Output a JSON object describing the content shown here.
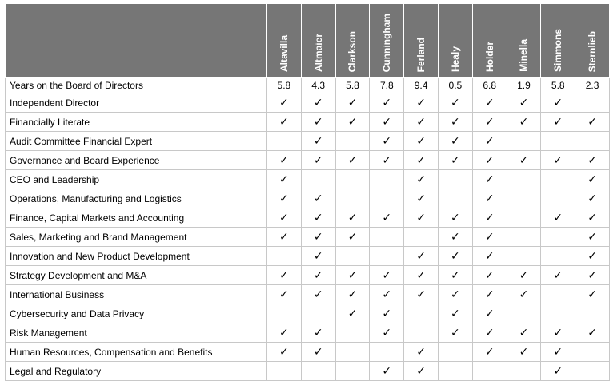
{
  "directors": [
    "Altavilla",
    "Altmaier",
    "Clarkson",
    "Cunningham",
    "Ferland",
    "Healy",
    "Holder",
    "Minella",
    "Simmons",
    "Sternlieb"
  ],
  "years": {
    "label": "Years on the Board of Directors",
    "values": [
      "5.8",
      "4.3",
      "5.8",
      "7.8",
      "9.4",
      "0.5",
      "6.8",
      "1.9",
      "5.8",
      "2.3"
    ]
  },
  "check_symbol": "✓",
  "skills": [
    {
      "label": "Independent Director",
      "checks": [
        1,
        1,
        1,
        1,
        1,
        1,
        1,
        1,
        1,
        0
      ]
    },
    {
      "label": "Financially Literate",
      "checks": [
        1,
        1,
        1,
        1,
        1,
        1,
        1,
        1,
        1,
        1
      ]
    },
    {
      "label": "Audit Committee Financial Expert",
      "checks": [
        0,
        1,
        0,
        1,
        1,
        1,
        1,
        0,
        0,
        0
      ]
    },
    {
      "label": "Governance and Board Experience",
      "checks": [
        1,
        1,
        1,
        1,
        1,
        1,
        1,
        1,
        1,
        1
      ]
    },
    {
      "label": "CEO and Leadership",
      "checks": [
        1,
        0,
        0,
        0,
        1,
        0,
        1,
        0,
        0,
        1
      ]
    },
    {
      "label": "Operations, Manufacturing and Logistics",
      "checks": [
        1,
        1,
        0,
        0,
        1,
        0,
        1,
        0,
        0,
        1
      ]
    },
    {
      "label": "Finance, Capital Markets and Accounting",
      "checks": [
        1,
        1,
        1,
        1,
        1,
        1,
        1,
        0,
        1,
        1
      ]
    },
    {
      "label": "Sales, Marketing and Brand Management",
      "checks": [
        1,
        1,
        1,
        0,
        0,
        1,
        1,
        0,
        0,
        1
      ]
    },
    {
      "label": "Innovation and New Product Development",
      "checks": [
        0,
        1,
        0,
        0,
        1,
        1,
        1,
        0,
        0,
        1
      ]
    },
    {
      "label": "Strategy Development and M&A",
      "checks": [
        1,
        1,
        1,
        1,
        1,
        1,
        1,
        1,
        1,
        1
      ]
    },
    {
      "label": "International Business",
      "checks": [
        1,
        1,
        1,
        1,
        1,
        1,
        1,
        1,
        0,
        1
      ]
    },
    {
      "label": "Cybersecurity and Data Privacy",
      "checks": [
        0,
        0,
        1,
        1,
        0,
        1,
        1,
        0,
        0,
        0
      ]
    },
    {
      "label": "Risk Management",
      "checks": [
        1,
        1,
        0,
        1,
        0,
        1,
        1,
        1,
        1,
        1
      ]
    },
    {
      "label": "Human Resources, Compensation and Benefits",
      "checks": [
        1,
        1,
        0,
        0,
        1,
        0,
        1,
        1,
        1,
        0
      ]
    },
    {
      "label": "Legal and Regulatory",
      "checks": [
        0,
        0,
        0,
        1,
        1,
        0,
        0,
        0,
        1,
        0
      ]
    }
  ]
}
